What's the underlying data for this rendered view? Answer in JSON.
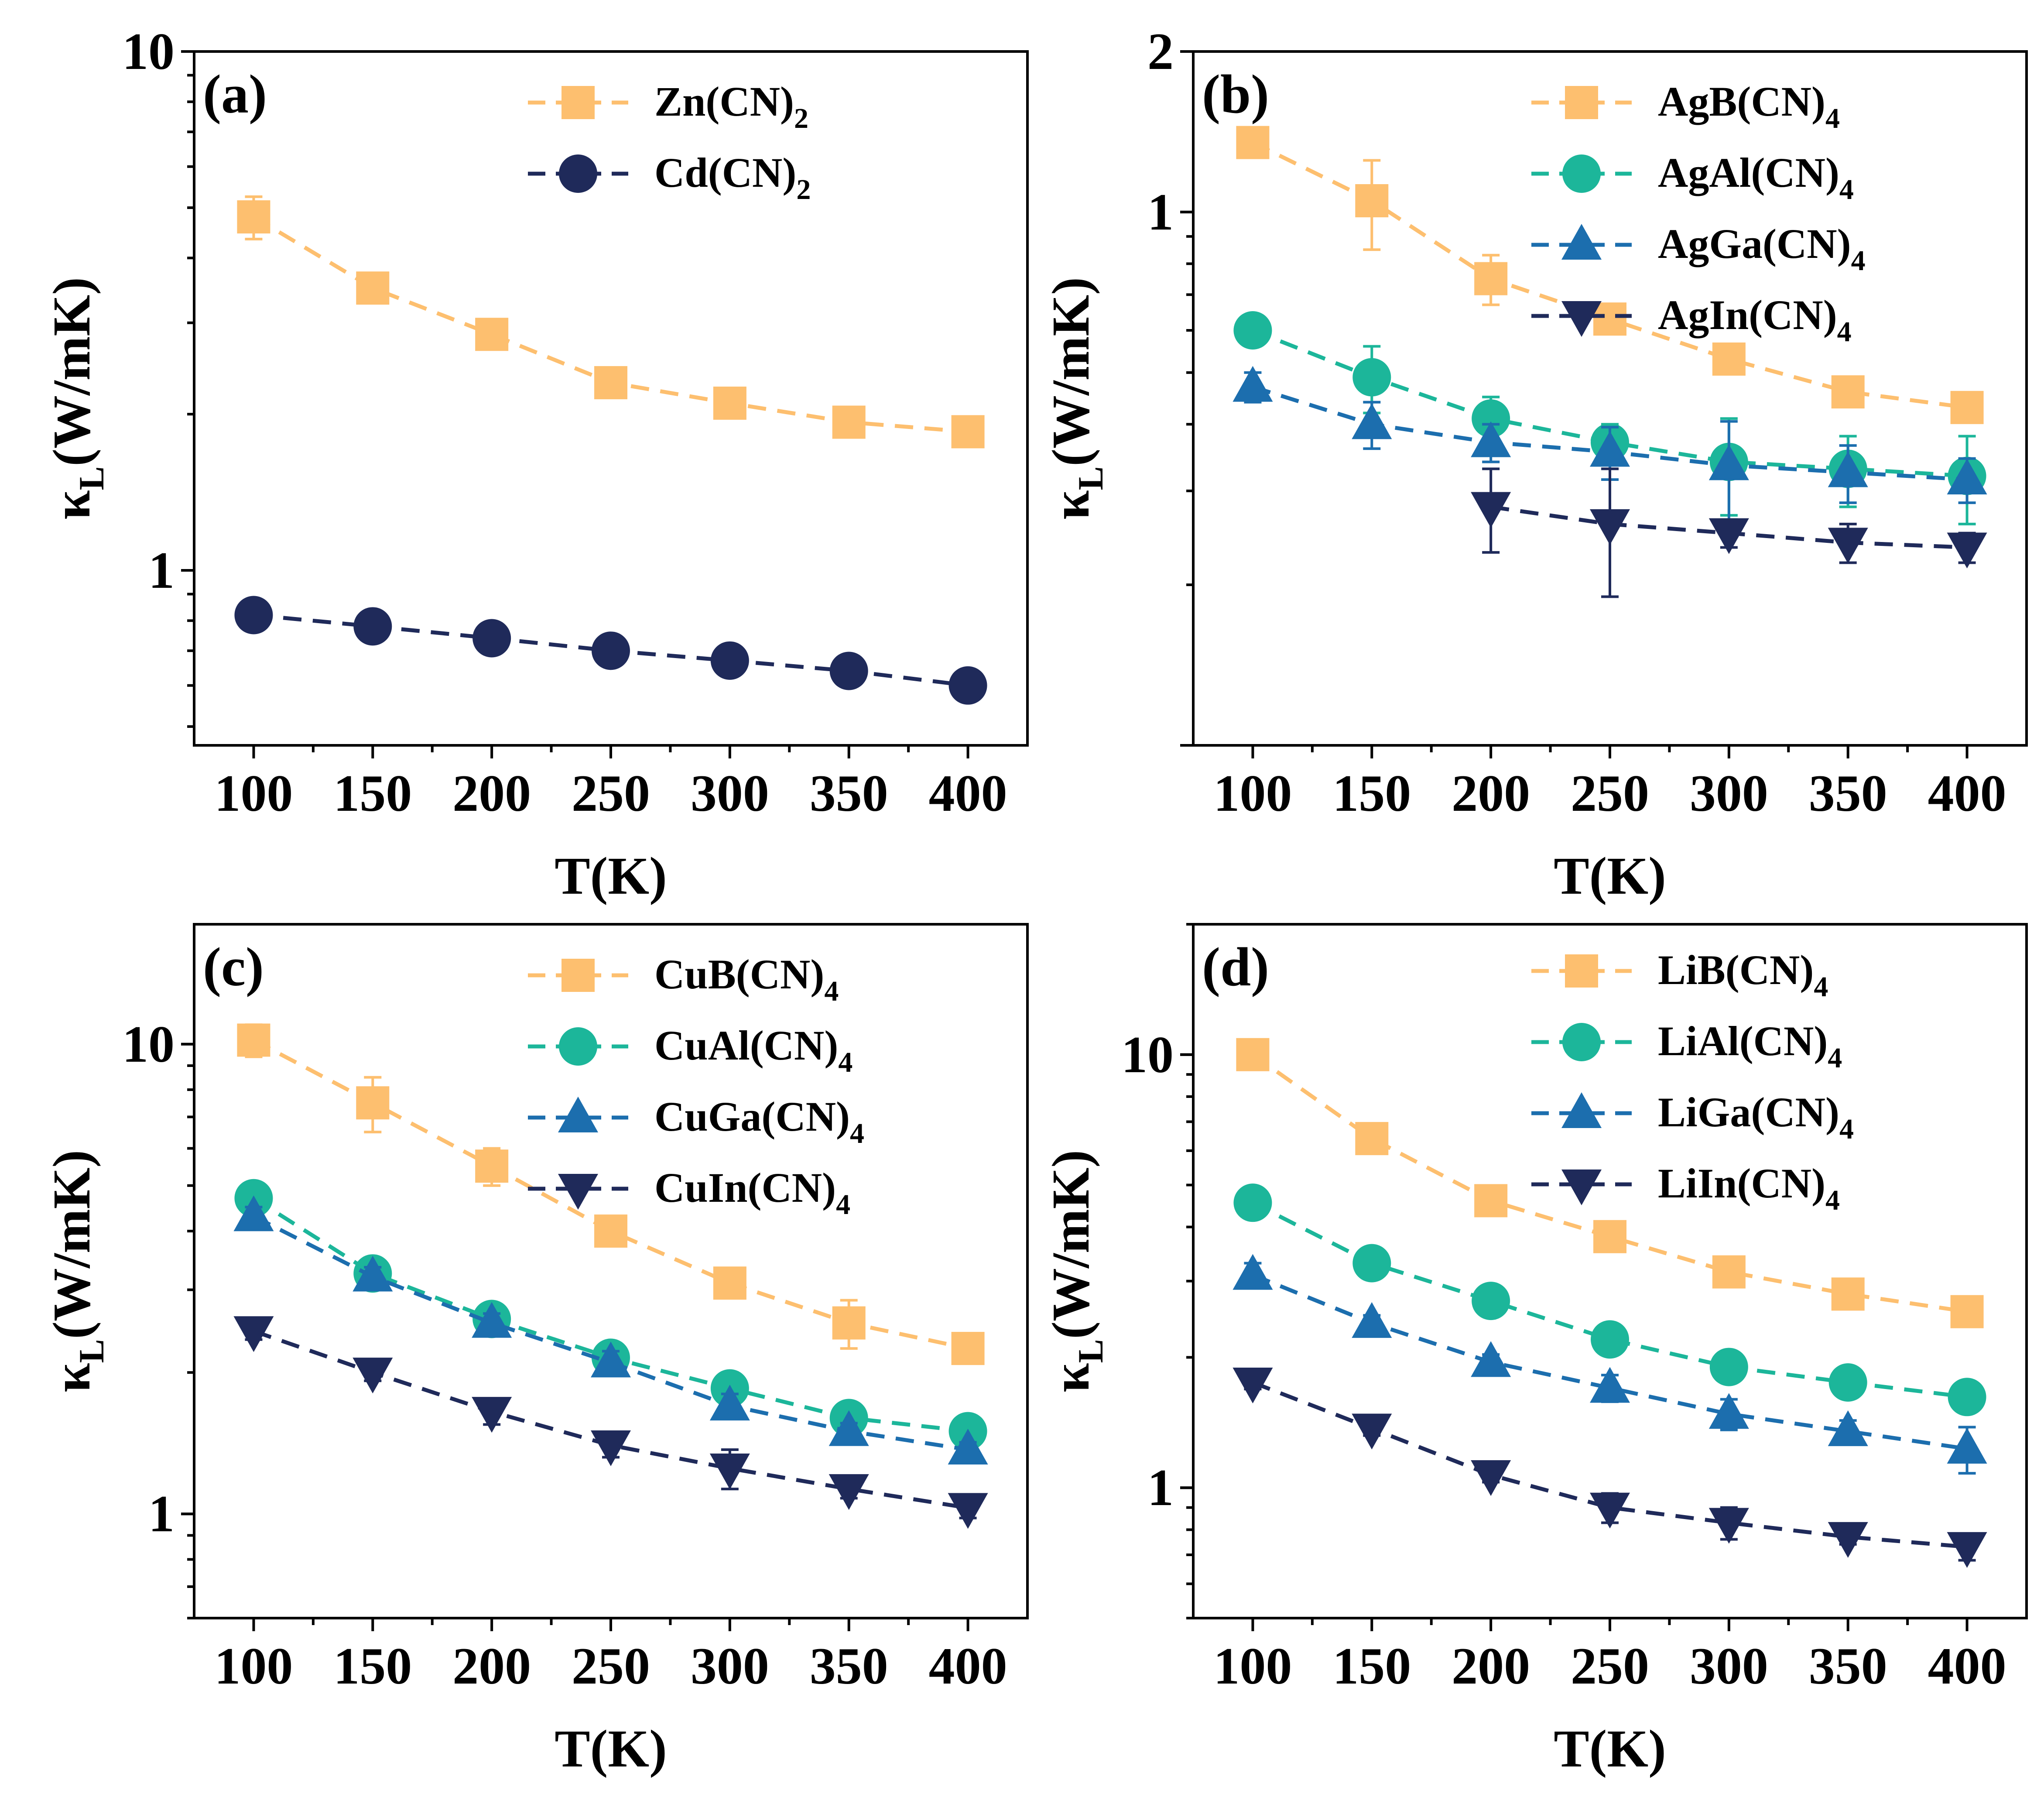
{
  "figure": {
    "yaxis_title_main": "κ",
    "yaxis_title_sub": "L",
    "yaxis_title_rest": "(W/mK)"
  },
  "chart_data": [
    {
      "id": "a",
      "type": "line",
      "panel_label": "(a)",
      "xlabel": "T(K)",
      "ylabel": "κL(W/mK)",
      "yscale": "log",
      "xlim": [
        75,
        425
      ],
      "ylim": [
        0.46,
        10
      ],
      "xticks": [
        100,
        150,
        200,
        250,
        300,
        350,
        400
      ],
      "xtick_labels": [
        "100",
        "150",
        "200",
        "250",
        "300",
        "350",
        "400"
      ],
      "yticks": [
        1,
        10
      ],
      "ytick_labels": [
        "1",
        "10"
      ],
      "x": [
        100,
        150,
        200,
        250,
        300,
        350,
        400
      ],
      "series": [
        {
          "name": "Zn(CN)2",
          "label_base": "Zn(CN)",
          "label_sub": "2",
          "color": "#FDBF6F",
          "marker": "square",
          "values": [
            4.8,
            3.5,
            2.85,
            2.3,
            2.1,
            1.93,
            1.85
          ],
          "errors": [
            0.45,
            0.12,
            0.1,
            0.06,
            0.06,
            0.06,
            0.05
          ]
        },
        {
          "name": "Cd(CN)2",
          "label_base": "Cd(CN)",
          "label_sub": "2",
          "color": "#1F2A5A",
          "marker": "circle",
          "values": [
            0.82,
            0.78,
            0.74,
            0.7,
            0.67,
            0.64,
            0.6
          ],
          "errors": [
            0.05,
            0.02,
            0.05,
            0.03,
            0.01,
            0.03,
            0.01
          ]
        }
      ]
    },
    {
      "id": "b",
      "type": "line",
      "panel_label": "(b)",
      "xlabel": "T(K)",
      "ylabel": "κL(W/mK)",
      "yscale": "log",
      "xlim": [
        75,
        425
      ],
      "ylim": [
        0.1,
        2
      ],
      "xticks": [
        100,
        150,
        200,
        250,
        300,
        350,
        400
      ],
      "xtick_labels": [
        "100",
        "150",
        "200",
        "250",
        "300",
        "350",
        "400"
      ],
      "yticks": [
        1,
        2
      ],
      "ytick_labels": [
        "1",
        "2"
      ],
      "x": [
        100,
        150,
        200,
        250,
        300,
        350,
        400
      ],
      "series": [
        {
          "name": "AgB(CN)4",
          "label_base": "AgB(CN)",
          "label_sub": "4",
          "color": "#FDBF6F",
          "marker": "square",
          "values": [
            1.35,
            1.05,
            0.75,
            0.63,
            0.53,
            0.46,
            0.43
          ],
          "errors": [
            0.07,
            0.2,
            0.08,
            0.04,
            0.03,
            0.02,
            0.02
          ]
        },
        {
          "name": "AgAl(CN)4",
          "label_base": "AgAl(CN)",
          "label_sub": "4",
          "color": "#1CB69A",
          "marker": "circle",
          "values": [
            0.6,
            0.49,
            0.41,
            0.37,
            0.34,
            0.33,
            0.32
          ],
          "errors": [
            0.03,
            0.07,
            0.04,
            0.03,
            0.07,
            0.05,
            0.06
          ]
        },
        {
          "name": "AgGa(CN)4",
          "label_base": "AgGa(CN)",
          "label_sub": "4",
          "color": "#1C6EAE",
          "marker": "triangle-up",
          "values": [
            0.47,
            0.4,
            0.37,
            0.355,
            0.335,
            0.325,
            0.315
          ],
          "errors": [
            0.03,
            0.04,
            0.03,
            0.04,
            0.07,
            0.04,
            0.03
          ]
        },
        {
          "name": "AgIn(CN)4",
          "label_base": "AgIn(CN)",
          "label_sub": "4",
          "color": "#1F2A5A",
          "marker": "triangle-down",
          "x": [
            200,
            250,
            300,
            350,
            400
          ],
          "values": [
            0.28,
            0.26,
            0.25,
            0.24,
            0.235
          ],
          "errors": [
            0.05,
            0.07,
            0.015,
            0.02,
            0.015
          ]
        }
      ]
    },
    {
      "id": "c",
      "type": "line",
      "panel_label": "(c)",
      "xlabel": "T(K)",
      "ylabel": "κL(W/mK)",
      "yscale": "log",
      "xlim": [
        75,
        425
      ],
      "ylim": [
        0.6,
        18
      ],
      "xticks": [
        100,
        150,
        200,
        250,
        300,
        350,
        400
      ],
      "xtick_labels": [
        "100",
        "150",
        "200",
        "250",
        "300",
        "350",
        "400"
      ],
      "yticks": [
        1,
        10
      ],
      "ytick_labels": [
        "1",
        "10"
      ],
      "x": [
        100,
        150,
        200,
        250,
        300,
        350,
        400
      ],
      "series": [
        {
          "name": "CuB(CN)4",
          "label_base": "CuB(CN)",
          "label_sub": "4",
          "color": "#FDBF6F",
          "marker": "square",
          "values": [
            10.2,
            7.5,
            5.5,
            4.0,
            3.1,
            2.55,
            2.25
          ],
          "errors": [
            0.8,
            1.0,
            0.5,
            0.15,
            0.15,
            0.3,
            0.15
          ]
        },
        {
          "name": "CuAl(CN)4",
          "label_base": "CuAl(CN)",
          "label_sub": "4",
          "color": "#1CB69A",
          "marker": "circle",
          "values": [
            4.7,
            3.25,
            2.6,
            2.15,
            1.85,
            1.6,
            1.5
          ],
          "errors": [
            0.2,
            0.15,
            0.1,
            0.15,
            0.15,
            0.08,
            0.06
          ]
        },
        {
          "name": "CuGa(CN)4",
          "label_base": "CuGa(CN)",
          "label_sub": "4",
          "color": "#1C6EAE",
          "marker": "triangle-up",
          "values": [
            4.3,
            3.2,
            2.55,
            2.1,
            1.7,
            1.5,
            1.37
          ],
          "errors": [
            0.2,
            0.15,
            0.12,
            0.12,
            0.1,
            0.06,
            0.05
          ]
        },
        {
          "name": "CuIn(CN)4",
          "label_base": "CuIn(CN)",
          "label_sub": "4",
          "color": "#1F2A5A",
          "marker": "triangle-down",
          "values": [
            2.45,
            2.0,
            1.65,
            1.4,
            1.25,
            1.13,
            1.03
          ],
          "errors": [
            0.1,
            0.08,
            0.1,
            0.08,
            0.12,
            0.05,
            0.05
          ]
        }
      ]
    },
    {
      "id": "d",
      "type": "line",
      "panel_label": "(d)",
      "xlabel": "T(K)",
      "ylabel": "κL(W/mK)",
      "yscale": "log",
      "xlim": [
        75,
        425
      ],
      "ylim": [
        0.5,
        20
      ],
      "xticks": [
        100,
        150,
        200,
        250,
        300,
        350,
        400
      ],
      "xtick_labels": [
        "100",
        "150",
        "200",
        "250",
        "300",
        "350",
        "400"
      ],
      "yticks": [
        1,
        10
      ],
      "ytick_labels": [
        "1",
        "10"
      ],
      "x": [
        100,
        150,
        200,
        250,
        300,
        350,
        400
      ],
      "series": [
        {
          "name": "LiB(CN)4",
          "label_base": "LiB(CN)",
          "label_sub": "4",
          "color": "#FDBF6F",
          "marker": "square",
          "values": [
            10.0,
            6.4,
            4.6,
            3.8,
            3.15,
            2.8,
            2.55
          ],
          "errors": [
            0.3,
            0.2,
            0.15,
            0.1,
            0.1,
            0.08,
            0.08
          ]
        },
        {
          "name": "LiAl(CN)4",
          "label_base": "LiAl(CN)",
          "label_sub": "4",
          "color": "#1CB69A",
          "marker": "circle",
          "values": [
            4.55,
            3.3,
            2.7,
            2.2,
            1.9,
            1.75,
            1.62
          ],
          "errors": [
            0.15,
            0.12,
            0.1,
            0.08,
            0.15,
            0.06,
            0.05
          ]
        },
        {
          "name": "LiGa(CN)4",
          "label_base": "LiGa(CN)",
          "label_sub": "4",
          "color": "#1C6EAE",
          "marker": "triangle-up",
          "values": [
            3.1,
            2.4,
            1.95,
            1.7,
            1.48,
            1.35,
            1.23
          ],
          "errors": [
            0.2,
            0.1,
            0.08,
            0.12,
            0.12,
            0.08,
            0.15
          ]
        },
        {
          "name": "LiIn(CN)4",
          "label_base": "LiIn(CN)",
          "label_sub": "4",
          "color": "#1F2A5A",
          "marker": "triangle-down",
          "values": [
            1.75,
            1.37,
            1.07,
            0.9,
            0.83,
            0.77,
            0.73
          ],
          "errors": [
            0.06,
            0.05,
            0.04,
            0.07,
            0.07,
            0.03,
            0.05
          ]
        }
      ]
    }
  ]
}
